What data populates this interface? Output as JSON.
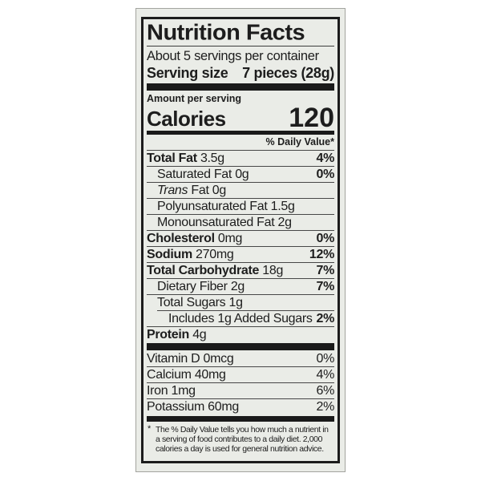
{
  "colors": {
    "page_bg": "#ffffff",
    "label_bg": "#eaece7",
    "label_border": "#a3a49f",
    "ink": "#1d1d1d"
  },
  "label": {
    "title": "Nutrition Facts",
    "servings_per_container": "About 5 servings per container",
    "serving_size": {
      "label": "Serving size",
      "value": "7 pieces (28g)"
    },
    "amount_per_serving": "Amount per serving",
    "calories": {
      "label": "Calories",
      "value": "120"
    },
    "daily_value_header": "% Daily Value*",
    "nutrients": [
      {
        "bold": "Total Fat",
        "italic": "",
        "text": "3.5g",
        "dv": "4%"
      },
      {
        "bold": "",
        "italic": "",
        "text": "Saturated Fat 0g",
        "dv": "0%"
      },
      {
        "bold": "",
        "italic": "Trans",
        "text": "Fat 0g",
        "dv": ""
      },
      {
        "bold": "",
        "italic": "",
        "text": "Polyunsaturated Fat 1.5g",
        "dv": ""
      },
      {
        "bold": "",
        "italic": "",
        "text": "Monounsaturated Fat 2g",
        "dv": ""
      },
      {
        "bold": "Cholesterol",
        "italic": "",
        "text": "0mg",
        "dv": "0%"
      },
      {
        "bold": "Sodium",
        "italic": "",
        "text": "270mg",
        "dv": "12%"
      },
      {
        "bold": "Total Carbohydrate",
        "italic": "",
        "text": "18g",
        "dv": "7%"
      },
      {
        "bold": "",
        "italic": "",
        "text": "Dietary Fiber 2g",
        "dv": "7%"
      },
      {
        "bold": "",
        "italic": "",
        "text": "Total Sugars 1g",
        "dv": ""
      },
      {
        "bold": "",
        "italic": "",
        "text": "Includes 1g Added Sugars",
        "dv": "2%"
      },
      {
        "bold": "Protein",
        "italic": "",
        "text": "4g",
        "dv": ""
      }
    ],
    "vitamins": [
      {
        "text": "Vitamin D 0mcg",
        "dv": "0%"
      },
      {
        "text": "Calcium 40mg",
        "dv": "4%"
      },
      {
        "text": "Iron 1mg",
        "dv": "6%"
      },
      {
        "text": "Potassium 60mg",
        "dv": "2%"
      }
    ],
    "footnote": {
      "marker": "*",
      "text": "The % Daily Value tells you how much a nutrient in a serving of food contributes to a daily diet. 2,000 calories a day is used for general nutrition advice."
    }
  }
}
